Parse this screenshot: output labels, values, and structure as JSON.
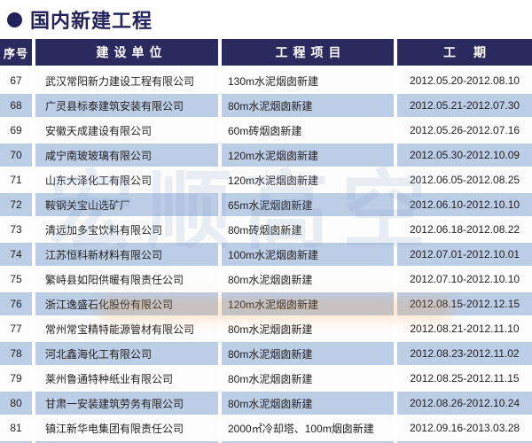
{
  "page_title": {
    "bullet": "●",
    "text": "国内新建工程"
  },
  "table": {
    "columns": [
      {
        "key": "no",
        "label": "序号"
      },
      {
        "key": "company",
        "label": "建设单位"
      },
      {
        "key": "project",
        "label": "工程项目"
      },
      {
        "key": "period",
        "label": "工期"
      }
    ],
    "rows": [
      {
        "no": "67",
        "company": "武汉常阳新力建设工程有限公司",
        "project": "130m水泥烟囱新建",
        "period": "2012.05.20-2012.08.10"
      },
      {
        "no": "68",
        "company": "广灵县标泰建筑安装有限公司",
        "project": "80m水泥烟囱新建",
        "period": "2012.05.21-2012.07.30"
      },
      {
        "no": "69",
        "company": "安徽天成建设有限公司",
        "project": "60m砖烟囱新建",
        "period": "2012.05.26-2012.07.16"
      },
      {
        "no": "70",
        "company": "咸宁南玻玻璃有限公司",
        "project": "120m水泥烟囱新建",
        "period": "2012.05.30-2012.10.09"
      },
      {
        "no": "71",
        "company": "山东大泽化工有限公司",
        "project": "120m水泥烟囱新建",
        "period": "2012.06.05-2012.08.25"
      },
      {
        "no": "72",
        "company": "鞍钢关宝山选矿厂",
        "project": "65m水泥烟囱新建",
        "period": "2012.06.10-2012.10.10"
      },
      {
        "no": "73",
        "company": "清远加多宝饮料有限公司",
        "project": "80m砖烟囱新建",
        "period": "2012.06.18-2012.08.22"
      },
      {
        "no": "74",
        "company": "江苏恒科新材料有限公司",
        "project": "100m水泥烟囱新建",
        "period": "2012.07.01-2012.10.01"
      },
      {
        "no": "75",
        "company": "繁峙县如阳供暖有限责任公司",
        "project": "80m水泥烟囱新建",
        "period": "2012.07.10-2012.10.10"
      },
      {
        "no": "76",
        "company": "浙江逸盛石化股份有限公司",
        "project": "120m水泥烟囱新建",
        "period": "2012.08.15-2012.12.15"
      },
      {
        "no": "77",
        "company": "常州常宝精特能源管材有限公司",
        "project": "80m水泥烟囱新建",
        "period": "2012.08.21-2012.11.10"
      },
      {
        "no": "78",
        "company": "河北鑫海化工有限公司",
        "project": "80m水泥烟囱新建",
        "period": "2012.08.23-2012.11.02"
      },
      {
        "no": "79",
        "company": "莱州鲁通特种纸业有限公司",
        "project": "80m水泥烟囱新建",
        "period": "2012.08.25-2012.11.15"
      },
      {
        "no": "80",
        "company": "甘肃一安装建筑劳务有限公司",
        "project": "80m水泥烟囱新建",
        "period": "2012.08.26-2012.10.24"
      },
      {
        "no": "81",
        "company": "镇江新华电集团有限责任公司",
        "project": "2000㎡冷却塔、100m烟囱新建",
        "period": "2012.09.16-2013.03.28"
      }
    ]
  },
  "watermark": {
    "logo_text": "宏顺高空"
  },
  "colors": {
    "header_bg": "#2a2a5e",
    "stripe_bg": "#bccde6",
    "title_color": "#23235c",
    "text_color": "#1f1f1f"
  }
}
